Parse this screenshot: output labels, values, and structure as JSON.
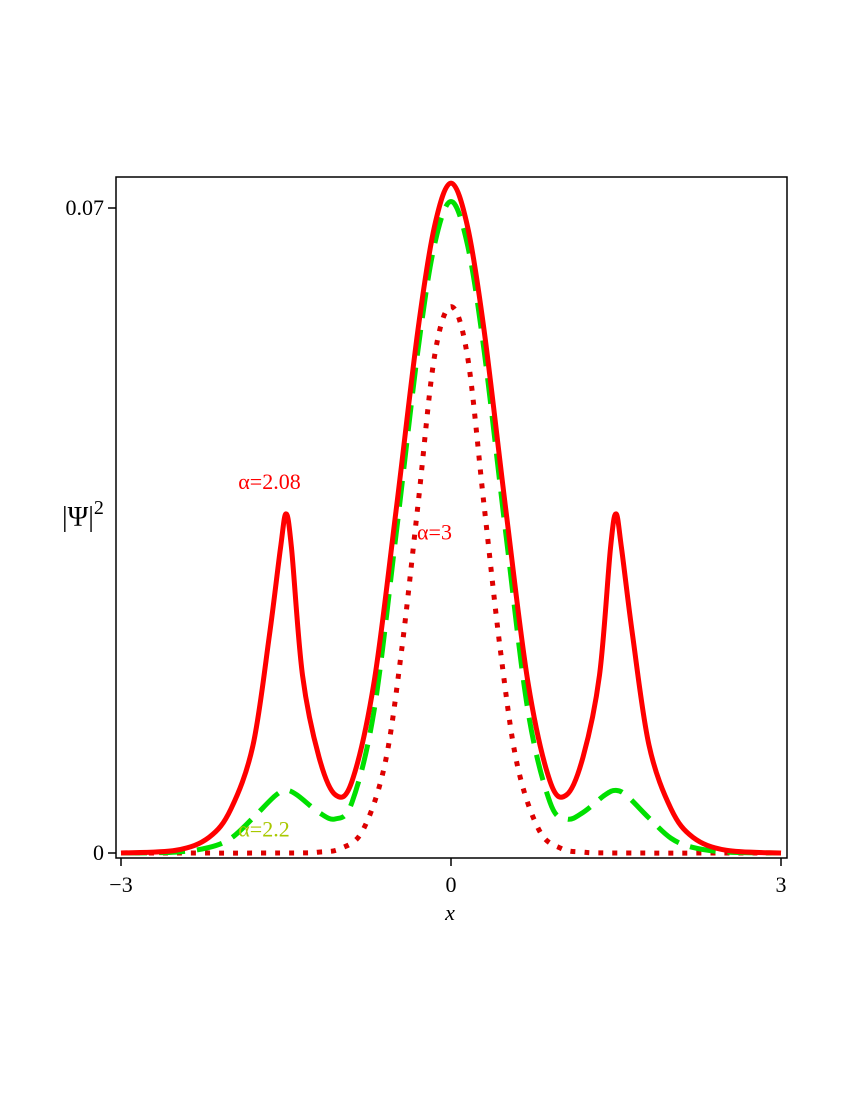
{
  "chart_data": {
    "type": "line",
    "title": "",
    "xlabel": "x",
    "ylabel_base": "|Ψ|",
    "ylabel_sup": "2",
    "xlim": [
      -3,
      3
    ],
    "ylim": [
      0,
      0.07
    ],
    "x_ticks": [
      -3,
      0,
      3
    ],
    "x_tick_labels": [
      "−3",
      "0",
      "3"
    ],
    "y_ticks": [
      0,
      0.07
    ],
    "y_tick_labels": [
      "0",
      "0.07"
    ],
    "grid": false,
    "legend": "none",
    "series": [
      {
        "id": "alpha-2.08",
        "color": "#ff0000",
        "dash": "solid",
        "x": [
          -3.0,
          -2.5,
          -2.2,
          -2.0,
          -1.8,
          -1.65,
          -1.55,
          -1.5,
          -1.45,
          -1.35,
          -1.2,
          -1.05,
          -0.9,
          -0.7,
          -0.5,
          -0.3,
          -0.15,
          0.0,
          0.15,
          0.3,
          0.5,
          0.7,
          0.9,
          1.05,
          1.2,
          1.35,
          1.45,
          1.5,
          1.55,
          1.65,
          1.8,
          2.0,
          2.2,
          2.5,
          3.0
        ],
        "y": [
          0.0,
          0.0003,
          0.0017,
          0.0048,
          0.0117,
          0.0237,
          0.0331,
          0.0368,
          0.0331,
          0.0193,
          0.0104,
          0.0063,
          0.0078,
          0.0185,
          0.0371,
          0.0568,
          0.068,
          0.0727,
          0.068,
          0.0568,
          0.0371,
          0.0185,
          0.0078,
          0.0063,
          0.0104,
          0.0193,
          0.0331,
          0.0368,
          0.0331,
          0.0237,
          0.0117,
          0.0048,
          0.0017,
          0.0003,
          0.0
        ]
      },
      {
        "id": "alpha-2.2",
        "color": "#00e000",
        "dash": "dashed",
        "x": [
          -3.0,
          -2.5,
          -2.2,
          -2.0,
          -1.8,
          -1.6,
          -1.5,
          -1.4,
          -1.2,
          -1.05,
          -0.9,
          -0.7,
          -0.5,
          -0.3,
          -0.15,
          0.0,
          0.15,
          0.3,
          0.5,
          0.7,
          0.9,
          1.05,
          1.2,
          1.4,
          1.5,
          1.6,
          1.8,
          2.0,
          2.2,
          2.5,
          3.0
        ],
        "y": [
          0.0,
          0.0001,
          0.0006,
          0.0016,
          0.0038,
          0.0062,
          0.0068,
          0.0063,
          0.0044,
          0.0037,
          0.0055,
          0.0154,
          0.0345,
          0.0546,
          0.066,
          0.0707,
          0.066,
          0.0546,
          0.0345,
          0.0154,
          0.0055,
          0.0037,
          0.0044,
          0.0063,
          0.0068,
          0.0062,
          0.0038,
          0.0016,
          0.0006,
          0.0001,
          0.0
        ]
      },
      {
        "id": "alpha-3",
        "color": "#dd0000",
        "dash": "dotted",
        "x": [
          -3.0,
          -1.5,
          -1.2,
          -1.0,
          -0.8,
          -0.6,
          -0.45,
          -0.3,
          -0.15,
          0.0,
          0.15,
          0.3,
          0.45,
          0.6,
          0.8,
          1.0,
          1.2,
          1.5,
          3.0
        ],
        "y": [
          0.0,
          0.0,
          0.0001,
          0.0005,
          0.0025,
          0.0097,
          0.0219,
          0.0378,
          0.0539,
          0.0593,
          0.0539,
          0.0378,
          0.0219,
          0.0097,
          0.0025,
          0.0005,
          0.0001,
          0.0,
          0.0
        ]
      }
    ],
    "annotations": [
      {
        "id": "annot-alpha-2.08",
        "text": "α=2.08",
        "color": "#ff0000",
        "x": -1.65,
        "y": 0.0395
      },
      {
        "id": "annot-alpha-3",
        "text": "α=3",
        "color": "#ff0000",
        "x": -0.15,
        "y": 0.034
      },
      {
        "id": "annot-alpha-2.2",
        "text": "α=2.2",
        "color": "#a8c800",
        "x": -1.7,
        "y": 0.0018
      }
    ]
  }
}
